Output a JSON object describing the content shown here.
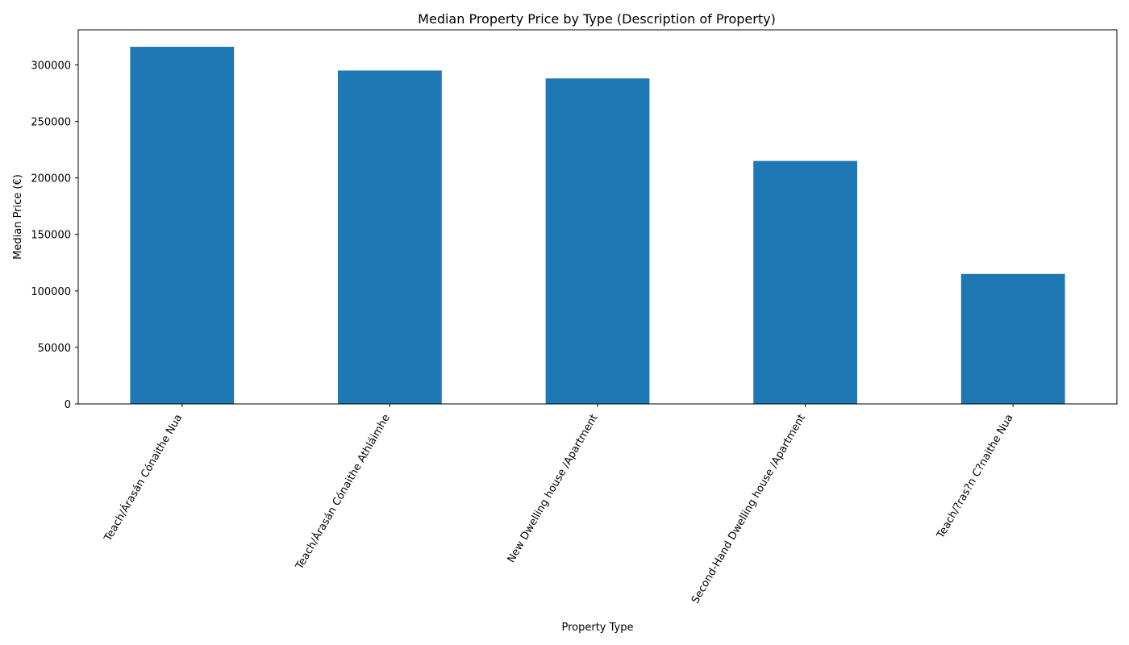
{
  "chart_data": {
    "type": "bar",
    "title": "Median Property Price by Type (Description of Property)",
    "xlabel": "Property Type",
    "ylabel": "Median Price (€)",
    "categories": [
      "Teach/Árasán Cónaithe Nua",
      "Teach/Árasán Cónaithe Athláimhe",
      "New Dwelling house /Apartment",
      "Second-Hand Dwelling house /Apartment",
      "Teach/?ras?n C?naithe Nua"
    ],
    "values": [
      316000,
      295000,
      288000,
      215000,
      115000
    ],
    "ylim": [
      0,
      331000
    ],
    "yticks": [
      0,
      50000,
      100000,
      150000,
      200000,
      250000,
      300000
    ],
    "bar_color": "#1f77b4",
    "grid": false,
    "legend": "none"
  }
}
